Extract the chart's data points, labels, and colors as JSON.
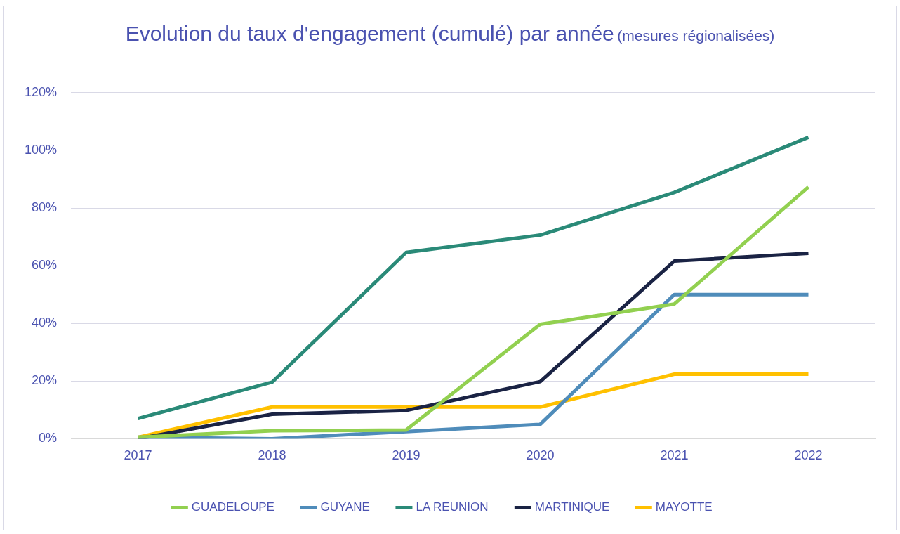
{
  "chart_data": {
    "type": "line",
    "title": "Evolution du taux d'engagement (cumulé) par année",
    "subtitle": "(mesures régionalisées)",
    "categories": [
      "2017",
      "2018",
      "2019",
      "2020",
      "2021",
      "2022"
    ],
    "series": [
      {
        "name": "GUADELOUPE",
        "color": "#92d050",
        "values": [
          0.5,
          2.8,
          3,
          39.7,
          46.7,
          87.3
        ]
      },
      {
        "name": "GUYANE",
        "color": "#4f8cba",
        "values": [
          0.5,
          0,
          2.5,
          5,
          50,
          50
        ]
      },
      {
        "name": "LA REUNION",
        "color": "#2a8a78",
        "values": [
          7,
          19.6,
          64.6,
          70.6,
          85.4,
          104.5
        ]
      },
      {
        "name": "MARTINIQUE",
        "color": "#1a2344",
        "values": [
          0,
          8.5,
          9.8,
          19.8,
          61.6,
          64.3
        ]
      },
      {
        "name": "MAYOTTE",
        "color": "#ffc000",
        "values": [
          0.5,
          11,
          11,
          11,
          22.4,
          22.4
        ]
      }
    ],
    "ylim": [
      0,
      120
    ],
    "yticks": [
      {
        "value": 0,
        "label": "0%"
      },
      {
        "value": 20,
        "label": "20%"
      },
      {
        "value": 40,
        "label": "40%"
      },
      {
        "value": 60,
        "label": "60%"
      },
      {
        "value": 80,
        "label": "80%"
      },
      {
        "value": 100,
        "label": "100%"
      },
      {
        "value": 120,
        "label": "120%"
      }
    ],
    "grid": "y",
    "legend": "bottom",
    "marker": "none",
    "line_style": "solid"
  }
}
